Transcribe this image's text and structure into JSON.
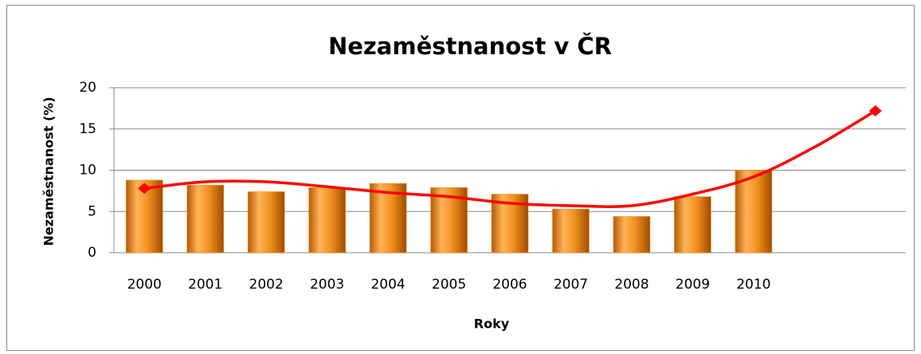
{
  "chart_data": {
    "type": "bar",
    "title": "Nezaměstnanost v ČR",
    "x_label": "Roky",
    "y_label": "Nezaměstnanost (%)",
    "categories": [
      "2000",
      "2001",
      "2002",
      "2003",
      "2004",
      "2005",
      "2006",
      "2007",
      "2008",
      "2009",
      "2010",
      null,
      null
    ],
    "series": [
      {
        "type": "bar",
        "color": "#f0901e",
        "values": [
          8.8,
          8.2,
          7.4,
          7.9,
          8.4,
          7.9,
          7.1,
          5.3,
          4.4,
          6.8,
          10.0,
          null,
          null
        ]
      },
      {
        "type": "line",
        "color": "#ff0000",
        "values": [
          7.8,
          8.6,
          8.6,
          8.0,
          7.3,
          6.8,
          6.0,
          5.7,
          5.7,
          7.1,
          9.2,
          12.8,
          17.2
        ]
      }
    ],
    "ylim": [
      0,
      20
    ],
    "yticks": [
      0,
      5,
      10,
      15,
      20
    ],
    "grid": true
  }
}
